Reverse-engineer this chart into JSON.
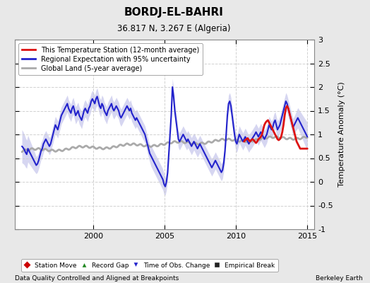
{
  "title": "BORDJ-EL-BAHRI",
  "subtitle": "36.817 N, 3.267 E (Algeria)",
  "ylabel": "Temperature Anomaly (°C)",
  "xlabel_left": "Data Quality Controlled and Aligned at Breakpoints",
  "xlabel_right": "Berkeley Earth",
  "xlim": [
    1994.5,
    2015.5
  ],
  "ylim": [
    -1.0,
    3.0
  ],
  "yticks": [
    -1,
    -0.5,
    0,
    0.5,
    1,
    1.5,
    2,
    2.5,
    3
  ],
  "xticks": [
    2000,
    2005,
    2010,
    2015
  ],
  "xtick_labels": [
    "2000",
    "2005",
    "2010",
    "2015"
  ],
  "bg_color": "#e8e8e8",
  "plot_bg_color": "#ffffff",
  "grid_color": "#cccccc",
  "blue_line_color": "#2222cc",
  "blue_fill_color": "#9999dd",
  "gray_line_color": "#aaaaaa",
  "red_line_color": "#dd1111",
  "legend_labels": [
    "This Temperature Station (12-month average)",
    "Regional Expectation with 95% uncertainty",
    "Global Land (5-year average)"
  ],
  "bottom_legend": [
    {
      "label": "Station Move",
      "color": "#cc0000",
      "marker": "D"
    },
    {
      "label": "Record Gap",
      "color": "#228822",
      "marker": "^"
    },
    {
      "label": "Time of Obs. Change",
      "color": "#2222cc",
      "marker": "v"
    },
    {
      "label": "Empirical Break",
      "color": "#222222",
      "marker": "s"
    }
  ],
  "figsize": [
    5.24,
    4.0
  ],
  "dpi": 100
}
